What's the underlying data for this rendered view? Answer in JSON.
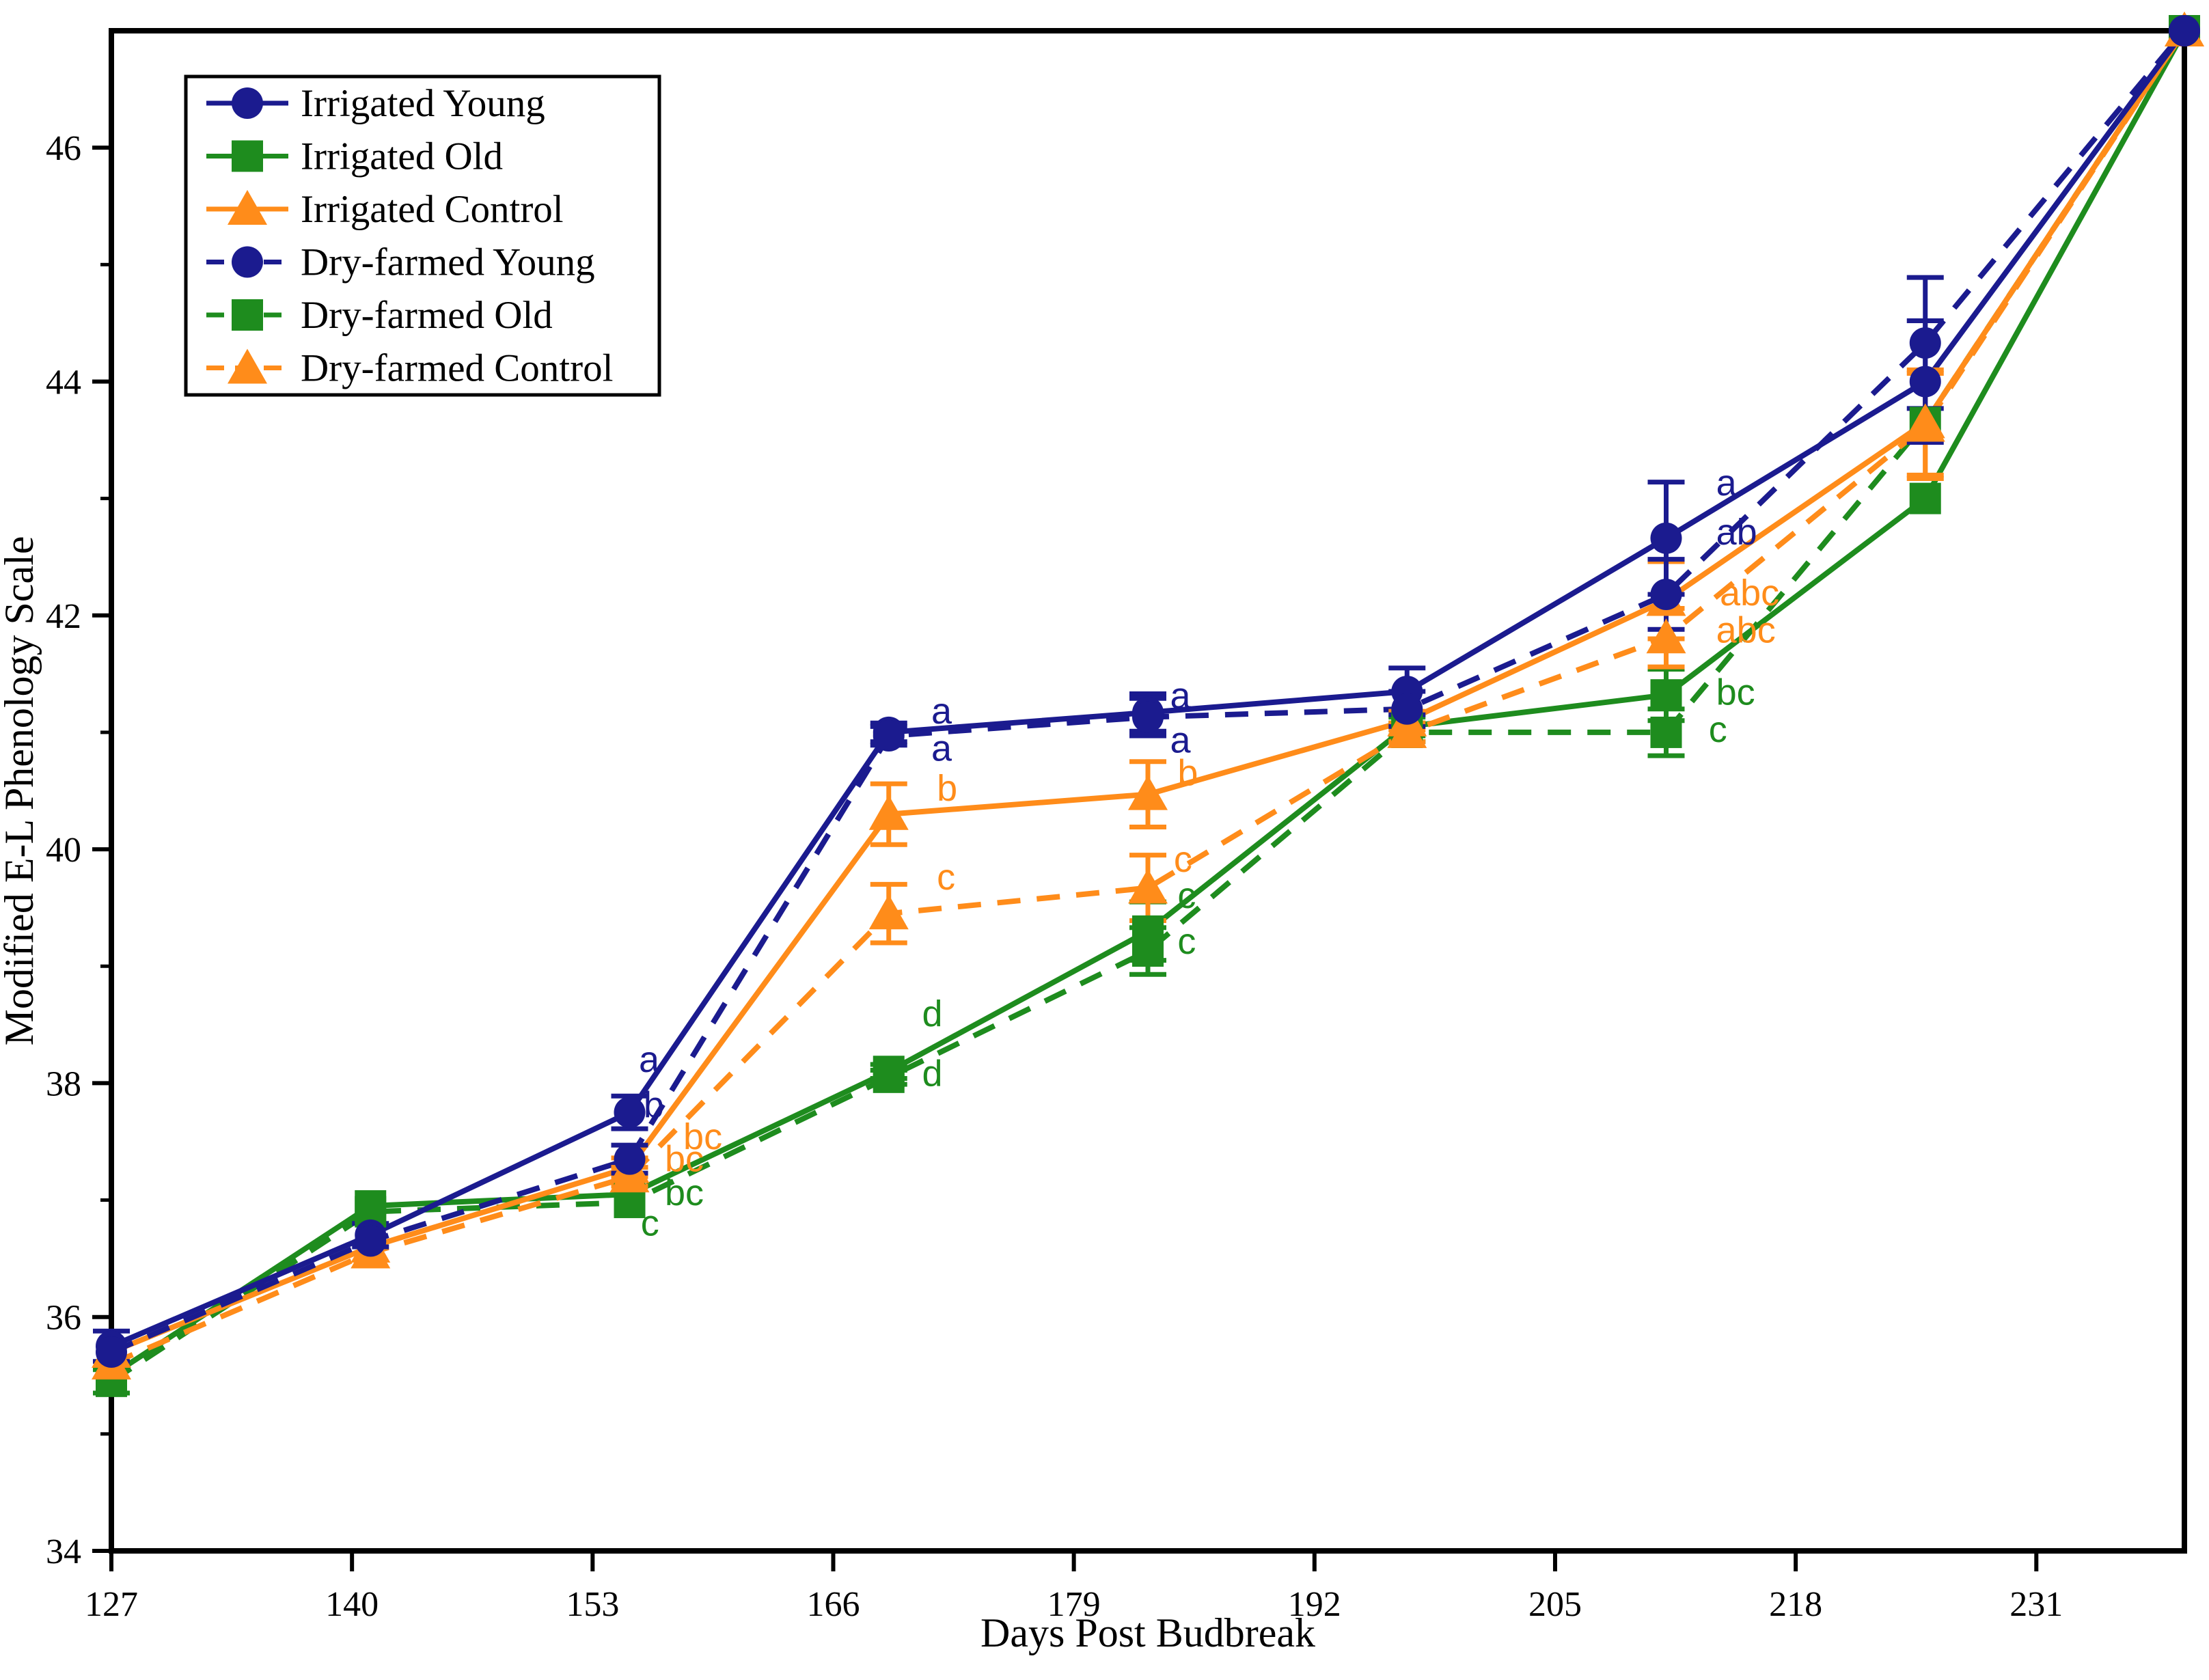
{
  "page": {
    "background": "#ffffff"
  },
  "chart_data": {
    "type": "line",
    "title": "",
    "xlabel": "Days Post Budbreak",
    "ylabel": "Modified E-L Phenology Scale",
    "xlim": [
      127,
      239
    ],
    "ylim": [
      34,
      47
    ],
    "grid": false,
    "legend_position": "top-left",
    "x_major_ticks": [
      127,
      140,
      153,
      166,
      179,
      192,
      205,
      218,
      231
    ],
    "x_tick_labels": [
      "127",
      "140",
      "153",
      "166",
      "179",
      "192",
      "205",
      "218",
      "231"
    ],
    "y_major_ticks": [
      34,
      36,
      38,
      40,
      42,
      44,
      46
    ],
    "y_tick_labels": [
      "34",
      "36",
      "38",
      "40",
      "42",
      "44",
      "46"
    ],
    "y_minor_ticks": [
      35,
      37,
      39,
      41,
      43,
      45
    ],
    "colors": {
      "navy": "#1b1b8f",
      "green": "#1e8c1e",
      "orange": "#ff8c1a"
    },
    "x": [
      127,
      141,
      155,
      169,
      183,
      197,
      211,
      225,
      239
    ],
    "series": [
      {
        "name": "Irrigated Young",
        "marker": "circle",
        "line": "solid",
        "color_key": "navy",
        "values": [
          35.75,
          36.7,
          37.75,
          41.0,
          41.17,
          41.35,
          42.66,
          44.0,
          47.0
        ],
        "errors": [
          0.13,
          0.1,
          0.14,
          0.08,
          0.16,
          0.2,
          0.48,
          0.52,
          0
        ]
      },
      {
        "name": "Irrigated Old",
        "marker": "square",
        "line": "solid",
        "color_key": "green",
        "values": [
          35.5,
          36.95,
          37.05,
          38.1,
          39.3,
          41.05,
          41.32,
          43.0,
          47.0
        ],
        "errors": [
          0,
          0,
          0,
          0.06,
          0.25,
          0.08,
          0.22,
          0,
          0
        ]
      },
      {
        "name": "Irrigated Control",
        "marker": "triangle",
        "line": "solid",
        "color_key": "orange",
        "values": [
          35.7,
          36.6,
          37.28,
          40.3,
          40.47,
          41.1,
          42.13,
          43.65,
          47.0
        ],
        "errors": [
          0,
          0,
          0.08,
          0.26,
          0.28,
          0.08,
          0.33,
          0.45,
          0
        ]
      },
      {
        "name": "Dry-farmed Young",
        "marker": "circle",
        "line": "dashed",
        "color_key": "navy",
        "values": [
          35.7,
          36.65,
          37.35,
          40.97,
          41.13,
          41.2,
          42.18,
          44.33,
          47.0
        ],
        "errors": [
          0,
          0,
          0.12,
          0.08,
          0.16,
          0.15,
          0.3,
          0.56,
          0
        ]
      },
      {
        "name": "Dry-farmed Old",
        "marker": "square",
        "line": "dashed",
        "color_key": "green",
        "values": [
          35.45,
          36.9,
          36.98,
          38.05,
          39.13,
          41.0,
          41.0,
          43.65,
          47.0
        ],
        "errors": [
          0.1,
          0,
          0,
          0.06,
          0.2,
          0.08,
          0.2,
          0,
          0
        ]
      },
      {
        "name": "Dry-farmed Control",
        "marker": "triangle",
        "line": "dashed",
        "color_key": "orange",
        "values": [
          35.6,
          36.55,
          37.2,
          39.45,
          39.67,
          41.0,
          41.81,
          43.62,
          47.0
        ],
        "errors": [
          0,
          0,
          0.08,
          0.25,
          0.28,
          0.08,
          0.25,
          0.45,
          0
        ]
      }
    ],
    "annotations": [
      {
        "text": "a",
        "color": "navy",
        "x": 155.5,
        "y": 38.18
      },
      {
        "text": "b",
        "color": "navy",
        "x": 155.75,
        "y": 37.79
      },
      {
        "text": "bc",
        "color": "orange",
        "x": 157.9,
        "y": 37.52
      },
      {
        "text": "bc",
        "color": "orange",
        "x": 156.9,
        "y": 37.33
      },
      {
        "text": "bc",
        "color": "green",
        "x": 156.9,
        "y": 37.04
      },
      {
        "text": "c",
        "color": "green",
        "x": 155.6,
        "y": 36.78
      },
      {
        "text": "a",
        "color": "navy",
        "x": 171.3,
        "y": 41.16
      },
      {
        "text": "a",
        "color": "navy",
        "x": 171.3,
        "y": 40.84
      },
      {
        "text": "b",
        "color": "orange",
        "x": 171.6,
        "y": 40.5
      },
      {
        "text": "c",
        "color": "orange",
        "x": 171.6,
        "y": 39.74
      },
      {
        "text": "d",
        "color": "green",
        "x": 170.8,
        "y": 38.57
      },
      {
        "text": "d",
        "color": "green",
        "x": 170.8,
        "y": 38.06
      },
      {
        "text": "a",
        "color": "navy",
        "x": 184.2,
        "y": 41.29
      },
      {
        "text": "a",
        "color": "navy",
        "x": 184.2,
        "y": 40.91
      },
      {
        "text": "b",
        "color": "orange",
        "x": 184.6,
        "y": 40.63
      },
      {
        "text": "c",
        "color": "orange",
        "x": 184.4,
        "y": 39.89
      },
      {
        "text": "c",
        "color": "green",
        "x": 184.6,
        "y": 39.58
      },
      {
        "text": "c",
        "color": "green",
        "x": 184.6,
        "y": 39.19
      },
      {
        "text": "a",
        "color": "navy",
        "x": 213.7,
        "y": 43.11
      },
      {
        "text": "ab",
        "color": "navy",
        "x": 213.7,
        "y": 42.69
      },
      {
        "text": "abc",
        "color": "orange",
        "x": 213.9,
        "y": 42.17
      },
      {
        "text": "abc",
        "color": "orange",
        "x": 213.7,
        "y": 41.85
      },
      {
        "text": "bc",
        "color": "green",
        "x": 213.7,
        "y": 41.32
      },
      {
        "text": "c",
        "color": "green",
        "x": 213.3,
        "y": 41.0
      }
    ]
  }
}
